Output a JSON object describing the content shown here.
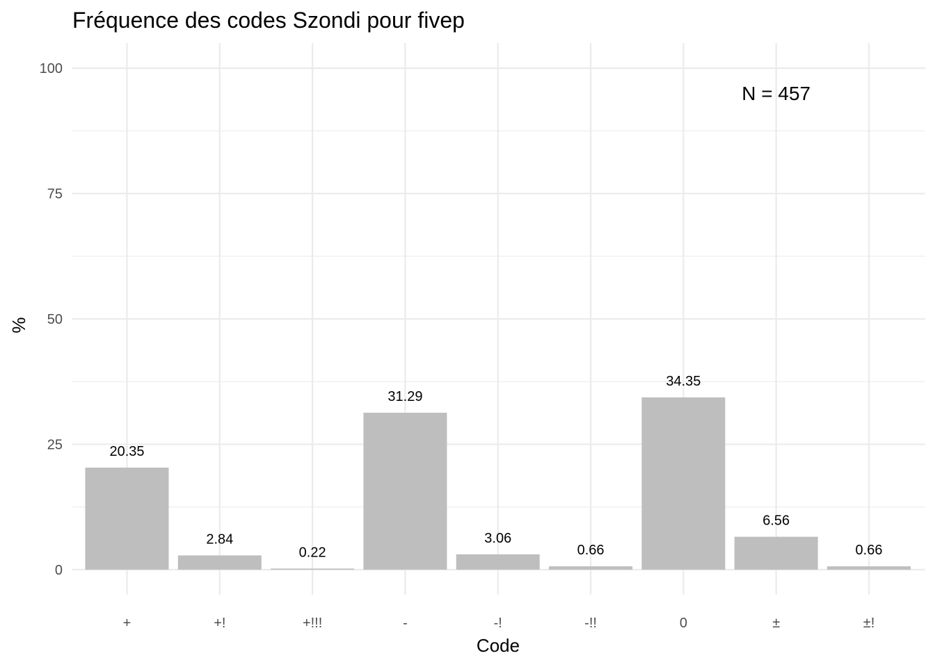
{
  "chart_data": {
    "type": "bar",
    "title": "Fréquence des codes Szondi pour fivep",
    "xlabel": "Code",
    "ylabel": "%",
    "categories": [
      "+",
      "+!",
      "+!!!",
      "-",
      "-!",
      "-!!",
      "0",
      "±",
      "±!"
    ],
    "values": [
      20.35,
      2.84,
      0.22,
      31.29,
      3.06,
      0.66,
      34.35,
      6.56,
      0.66
    ],
    "data_labels": [
      "20.35",
      "2.84",
      "0.22",
      "31.29",
      "3.06",
      "0.66",
      "34.35",
      "6.56",
      "0.66"
    ],
    "ylim": [
      -5,
      105
    ],
    "y_ticks": [
      0,
      25,
      50,
      75,
      100
    ],
    "y_tick_labels": [
      "0",
      "25",
      "50",
      "75",
      "100"
    ],
    "grid": true,
    "bar_color": "#bebebe",
    "annotation": {
      "text": "N = 457",
      "x": "±",
      "y": 95
    }
  }
}
